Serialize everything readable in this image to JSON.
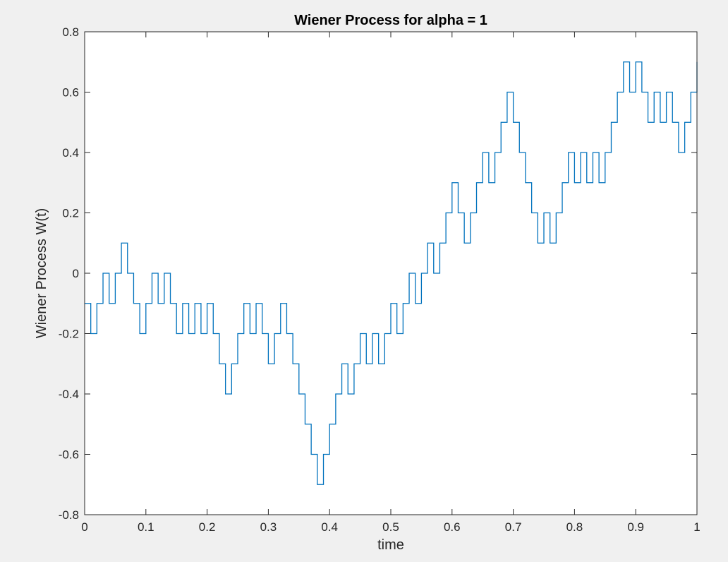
{
  "chart_data": {
    "type": "line",
    "title": "Wiener Process for alpha = 1",
    "xlabel": "time",
    "ylabel": "Wiener Process W(t)",
    "xlim": [
      0,
      1
    ],
    "ylim": [
      -0.8,
      0.8
    ],
    "xticks": [
      0,
      0.1,
      0.2,
      0.3,
      0.4,
      0.5,
      0.6,
      0.7,
      0.8,
      0.9,
      1
    ],
    "xtick_labels": [
      "0",
      "0.1",
      "0.2",
      "0.3",
      "0.4",
      "0.5",
      "0.6",
      "0.7",
      "0.8",
      "0.9",
      "1"
    ],
    "yticks": [
      -0.8,
      -0.6,
      -0.4,
      -0.2,
      0,
      0.2,
      0.4,
      0.6,
      0.8
    ],
    "ytick_labels": [
      "-0.8",
      "-0.6",
      "-0.4",
      "-0.2",
      "0",
      "0.2",
      "0.4",
      "0.6",
      "0.8"
    ],
    "grid": false,
    "line_style": "stairs",
    "step": 0.01,
    "colors": {
      "line": "#0072bd",
      "axes": "#262626",
      "plot_background": "#ffffff",
      "figure_background": "#f0f0f0"
    },
    "series": [
      {
        "x": [
          0,
          0.01,
          0.02,
          0.03,
          0.04,
          0.05,
          0.06,
          0.07,
          0.08,
          0.09,
          0.1,
          0.11,
          0.12,
          0.13,
          0.14,
          0.15,
          0.16,
          0.17,
          0.18,
          0.19,
          0.2,
          0.21,
          0.22,
          0.23,
          0.24,
          0.25,
          0.26,
          0.27,
          0.28,
          0.29,
          0.3,
          0.31,
          0.32,
          0.33,
          0.34,
          0.35,
          0.36,
          0.37,
          0.38,
          0.39,
          0.4,
          0.41,
          0.42,
          0.43,
          0.44,
          0.45,
          0.46,
          0.47,
          0.48,
          0.49,
          0.5,
          0.51,
          0.52,
          0.53,
          0.54,
          0.55,
          0.56,
          0.57,
          0.58,
          0.59,
          0.6,
          0.61,
          0.62,
          0.63,
          0.64,
          0.65,
          0.66,
          0.67,
          0.68,
          0.69,
          0.7,
          0.71,
          0.72,
          0.73,
          0.74,
          0.75,
          0.76,
          0.77,
          0.78,
          0.79,
          0.8,
          0.81,
          0.82,
          0.83,
          0.84,
          0.85,
          0.86,
          0.87,
          0.88,
          0.89,
          0.9,
          0.91,
          0.92,
          0.93,
          0.94,
          0.95,
          0.96,
          0.97,
          0.98,
          0.99,
          1.0
        ],
        "y": [
          -0.1,
          -0.2,
          -0.1,
          0,
          -0.1,
          0,
          0.1,
          0,
          -0.1,
          -0.2,
          -0.1,
          0,
          -0.1,
          0,
          -0.1,
          -0.2,
          -0.1,
          -0.2,
          -0.1,
          -0.2,
          -0.1,
          -0.2,
          -0.3,
          -0.4,
          -0.3,
          -0.2,
          -0.1,
          -0.2,
          -0.1,
          -0.2,
          -0.3,
          -0.2,
          -0.1,
          -0.2,
          -0.3,
          -0.4,
          -0.5,
          -0.6,
          -0.7,
          -0.6,
          -0.5,
          -0.4,
          -0.3,
          -0.4,
          -0.3,
          -0.2,
          -0.3,
          -0.2,
          -0.3,
          -0.2,
          -0.1,
          -0.2,
          -0.1,
          0,
          -0.1,
          0,
          0.1,
          0,
          0.1,
          0.2,
          0.3,
          0.2,
          0.1,
          0.2,
          0.3,
          0.4,
          0.3,
          0.4,
          0.5,
          0.6,
          0.5,
          0.4,
          0.3,
          0.2,
          0.1,
          0.2,
          0.1,
          0.2,
          0.3,
          0.4,
          0.3,
          0.4,
          0.3,
          0.4,
          0.3,
          0.4,
          0.5,
          0.6,
          0.7,
          0.6,
          0.7,
          0.6,
          0.5,
          0.6,
          0.5,
          0.6,
          0.5,
          0.4,
          0.5,
          0.6,
          0.7
        ]
      }
    ]
  }
}
